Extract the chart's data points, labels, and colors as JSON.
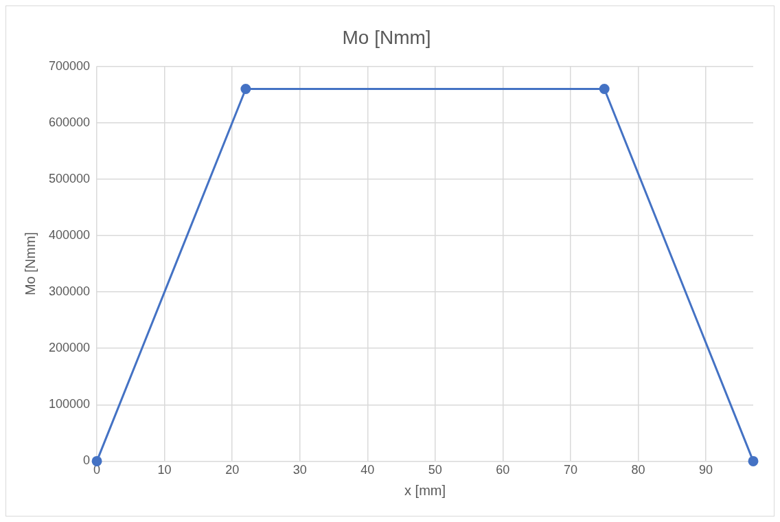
{
  "chart_data": {
    "type": "scatter",
    "title": "Mo [Nmm]",
    "xlabel": "x [mm]",
    "ylabel": "Mo [Nmm]",
    "x": [
      0,
      22,
      75,
      97
    ],
    "series": [
      {
        "type": "line",
        "color": "#4472c4",
        "values": [
          0,
          660000,
          660000,
          0
        ]
      }
    ],
    "xlim": [
      0,
      97
    ],
    "xticks": [
      0,
      10,
      20,
      30,
      40,
      50,
      60,
      70,
      80,
      90
    ],
    "ylim": [
      0,
      700000
    ],
    "yticks": [
      0,
      100000,
      200000,
      300000,
      400000,
      500000,
      600000,
      700000
    ],
    "grid": true,
    "legend": false,
    "marker": "circle",
    "line_style": "solid"
  }
}
